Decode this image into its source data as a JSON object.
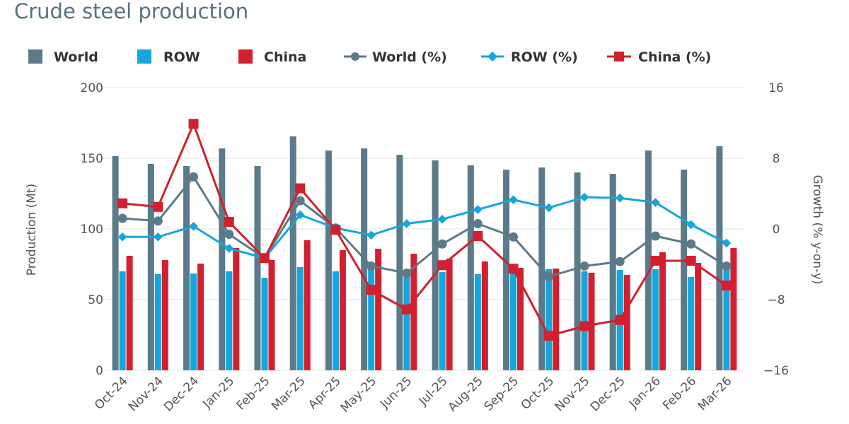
{
  "chart_data": {
    "type": "bar",
    "title": "Crude steel production",
    "categories": [
      "Oct-24",
      "Nov-24",
      "Dec-24",
      "Jan-25",
      "Feb-25",
      "Mar-25",
      "Apr-25",
      "May-25",
      "Jun-25",
      "Jul-25",
      "Aug-25",
      "Sep-25",
      "Oct-25",
      "Nov-25",
      "Dec-25",
      "Jan-26",
      "Feb-26",
      "Mar-26"
    ],
    "ylabel": "Production (Mt)",
    "y2label": "Growth (% y-on-y)",
    "ylim": [
      0,
      200
    ],
    "y2lim": [
      -16,
      16
    ],
    "yticks": [
      "0",
      "50",
      "100",
      "150",
      "200"
    ],
    "y2ticks": [
      "−16",
      "−8",
      "0",
      "8",
      "16"
    ],
    "grid": true,
    "legend_position": "top",
    "colors": {
      "World": "#5b7a8a",
      "ROW": "#14a6dd",
      "China": "#d2202e"
    },
    "bar_series": [
      {
        "name": "World",
        "values": [
          151.5,
          146,
          144.5,
          157,
          144.5,
          165.5,
          155.5,
          157,
          152.5,
          148.5,
          145,
          142,
          143.5,
          140,
          139,
          155.5,
          142,
          158.5
        ]
      },
      {
        "name": "ROW",
        "values": [
          70,
          68,
          68.5,
          70,
          65.5,
          73,
          70,
          72,
          70.5,
          69.5,
          68,
          70.5,
          71.5,
          70,
          71,
          71.5,
          66,
          72.5
        ]
      },
      {
        "name": "China",
        "values": [
          81,
          78,
          75.5,
          86.5,
          78,
          92,
          85,
          86,
          82.5,
          79,
          77,
          72.5,
          72,
          69,
          67.5,
          83.5,
          76,
          86.5
        ]
      }
    ],
    "line_series": [
      {
        "name": "World (%)",
        "values": [
          1.2,
          0.9,
          5.9,
          -0.6,
          -3.3,
          3.2,
          0.1,
          -4.2,
          -5.0,
          -1.7,
          0.6,
          -0.9,
          -5.4,
          -4.2,
          -3.7,
          -0.8,
          -1.7,
          -4.2
        ]
      },
      {
        "name": "ROW (%)",
        "values": [
          -0.9,
          -0.9,
          0.3,
          -2.2,
          -3.3,
          1.6,
          0.1,
          -0.7,
          0.6,
          1.1,
          2.2,
          3.3,
          2.4,
          3.6,
          3.5,
          3.0,
          0.5,
          -1.6
        ]
      },
      {
        "name": "China (%)",
        "values": [
          2.9,
          2.5,
          11.9,
          0.8,
          -3.3,
          4.6,
          -0.1,
          -6.9,
          -9.1,
          -4.1,
          -0.8,
          -4.5,
          -12.1,
          -11.0,
          -10.3,
          -3.6,
          -3.6,
          -6.4
        ]
      }
    ],
    "legend": [
      "World",
      "ROW",
      "China",
      "World (%)",
      "ROW (%)",
      "China (%)"
    ]
  }
}
